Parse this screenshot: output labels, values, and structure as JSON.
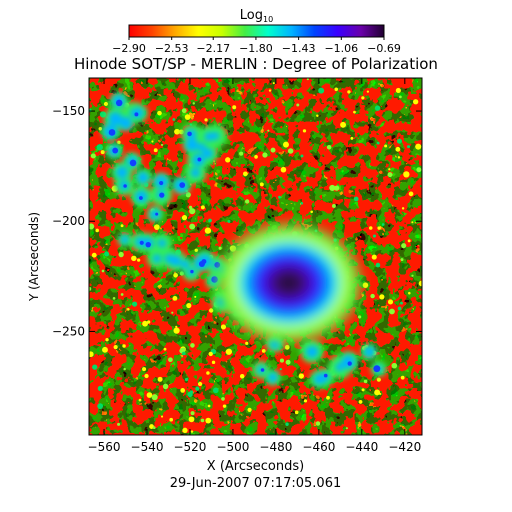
{
  "chart_data": {
    "type": "heatmap",
    "title": "Hinode SOT/SP - MERLIN : Degree of Polarization",
    "subtitle": "29-Jun-2007 07:17:05.061",
    "xlabel": "X (Arcseconds)",
    "ylabel": "Y (Arcseconds)",
    "xlim": [
      -567,
      -412
    ],
    "ylim": [
      -297,
      -135
    ],
    "x_ticks": [
      -560,
      -540,
      -520,
      -500,
      -480,
      -460,
      -440,
      -420
    ],
    "y_ticks": [
      -150,
      -200,
      -250
    ],
    "colorbar": {
      "label_base": "Log",
      "label_sub": "10",
      "range": [
        -2.9,
        -0.69
      ],
      "tick_values": [
        -2.9,
        -2.53,
        -2.17,
        -1.8,
        -1.43,
        -1.06,
        -0.69
      ],
      "tick_labels": [
        "−2.90",
        "−2.53",
        "−2.17",
        "−1.80",
        "−1.43",
        "−1.06",
        "−0.69"
      ],
      "colors": [
        "#ff0000",
        "#ff4400",
        "#ffaa00",
        "#ffff00",
        "#c8ff00",
        "#44ee44",
        "#00ffcc",
        "#00b4ff",
        "#0044ff",
        "#3a00ff",
        "#6a00aa",
        "#200030"
      ]
    },
    "features": [
      {
        "type": "sunspot-umbra",
        "x": -474,
        "y": -228,
        "value": -0.72
      },
      {
        "type": "sunspot-penumbra",
        "x": -474,
        "y": -228,
        "value": -1.3
      },
      {
        "type": "plage-network",
        "x": -545,
        "y": -205,
        "value": -1.5
      },
      {
        "type": "quiet-sun",
        "value": -2.8
      }
    ]
  }
}
